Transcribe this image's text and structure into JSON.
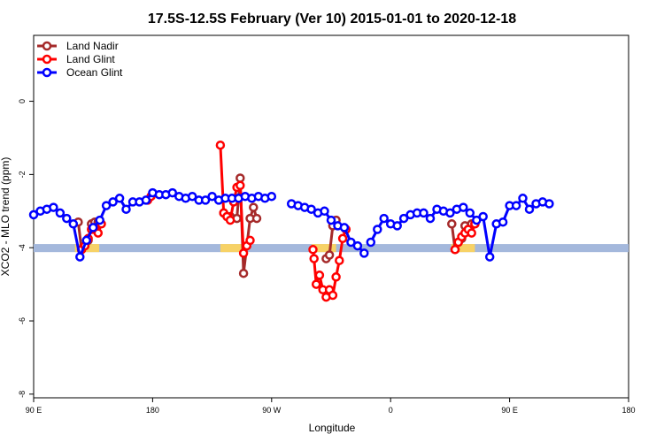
{
  "chart_data": {
    "type": "line",
    "title": "17.5S-12.5S February (Ver 10)   2015-01-01 to 2020-12-18",
    "xlabel": "Longitude",
    "ylabel": "XCO2 - MLO trend (ppm)",
    "xlim": [
      -90,
      180
    ],
    "ylim": [
      -8.1,
      1.8
    ],
    "x_ticks": [
      -90,
      -36,
      18,
      72,
      126,
      180
    ],
    "x_tick_labels": [
      "90 E",
      "180",
      "90 W",
      "0",
      "90 E",
      "180"
    ],
    "y_ticks": [
      0,
      -2,
      -4,
      -6,
      -8
    ],
    "y_tick_labels": [
      "0",
      "-2",
      "-4",
      "-6",
      "-8"
    ],
    "grid": false,
    "legend_position": "top-left",
    "series": [
      {
        "name": "Land Nadir",
        "color": "#a52a2a",
        "segments": [
          [
            [
              -69.75,
              -3.3
            ],
            [
              -68.25,
              -4.05
            ],
            [
              -66.75,
              -3.95
            ],
            [
              -65.25,
              -3.8
            ],
            [
              -63.75,
              -3.35
            ],
            [
              -62.25,
              -3.3
            ],
            [
              -60.75,
              -3.3
            ]
          ],
          [
            [
              -3.75,
              -3.05
            ],
            [
              -0.75,
              -3.15
            ],
            [
              2.25,
              -3.2
            ],
            [
              3.75,
              -2.1
            ],
            [
              5.25,
              -4.7
            ],
            [
              8.25,
              -3.2
            ],
            [
              9.75,
              -2.9
            ],
            [
              11.25,
              -3.2
            ]
          ],
          [
            [
              42.75,
              -4.3
            ],
            [
              44.25,
              -4.2
            ],
            [
              45.75,
              -3.4
            ],
            [
              47.25,
              -3.25
            ]
          ],
          [
            [
              99.75,
              -3.35
            ],
            [
              101.25,
              -4.05
            ],
            [
              102.75,
              -3.85
            ],
            [
              104.25,
              -3.75
            ],
            [
              105.75,
              -3.4
            ],
            [
              107.25,
              -3.5
            ],
            [
              108.75,
              -3.35
            ],
            [
              110.25,
              -3.35
            ]
          ]
        ]
      },
      {
        "name": "Land Glint",
        "color": "#ff0000",
        "segments": [
          [
            [
              -68.25,
              -4.05
            ],
            [
              -66.75,
              -3.95
            ],
            [
              -65.25,
              -3.75
            ],
            [
              -63.75,
              -3.5
            ],
            [
              -62.25,
              -3.5
            ],
            [
              -60.75,
              -3.6
            ],
            [
              -59.25,
              -3.35
            ]
          ],
          [
            [
              -38.25,
              -2.7
            ],
            [
              -36.75,
              -2.6
            ]
          ],
          [
            [
              -5.25,
              -1.2
            ],
            [
              -3.75,
              -3.05
            ],
            [
              -2.25,
              -3.15
            ],
            [
              -0.75,
              -3.25
            ],
            [
              0.75,
              -2.75
            ],
            [
              2.25,
              -2.35
            ],
            [
              3.75,
              -2.3
            ],
            [
              5.25,
              -4.15
            ],
            [
              6.75,
              -3.95
            ],
            [
              8.25,
              -3.8
            ]
          ],
          [
            [
              36.75,
              -4.05
            ],
            [
              37.25,
              -4.3
            ],
            [
              38.25,
              -5.0
            ],
            [
              39.75,
              -4.75
            ],
            [
              41.25,
              -5.15
            ],
            [
              42.75,
              -5.35
            ],
            [
              44.25,
              -5.15
            ],
            [
              45.75,
              -5.3
            ],
            [
              47.25,
              -4.8
            ],
            [
              48.75,
              -4.35
            ],
            [
              50.25,
              -3.75
            ],
            [
              51.75,
              -3.5
            ]
          ],
          [
            [
              101.25,
              -4.05
            ],
            [
              102.75,
              -3.85
            ],
            [
              104.25,
              -3.7
            ],
            [
              105.75,
              -3.6
            ],
            [
              107.25,
              -3.5
            ],
            [
              108.75,
              -3.6
            ],
            [
              110.25,
              -3.35
            ]
          ]
        ]
      },
      {
        "name": "Ocean Glint",
        "color": "#0000ff",
        "segments": [
          [
            [
              -90,
              -3.1
            ],
            [
              -87,
              -3.0
            ],
            [
              -84,
              -2.95
            ],
            [
              -81,
              -2.9
            ],
            [
              -78,
              -3.05
            ],
            [
              -75,
              -3.2
            ],
            [
              -72,
              -3.35
            ],
            [
              -69,
              -4.25
            ],
            [
              -66,
              -3.8
            ],
            [
              -63,
              -3.45
            ],
            [
              -60,
              -3.25
            ],
            [
              -57,
              -2.85
            ],
            [
              -54,
              -2.75
            ],
            [
              -51,
              -2.65
            ],
            [
              -48,
              -2.95
            ],
            [
              -45,
              -2.75
            ],
            [
              -42,
              -2.75
            ],
            [
              -39,
              -2.7
            ],
            [
              -36,
              -2.5
            ],
            [
              -33,
              -2.55
            ],
            [
              -30,
              -2.55
            ],
            [
              -27,
              -2.5
            ],
            [
              -24,
              -2.6
            ],
            [
              -21,
              -2.65
            ],
            [
              -18,
              -2.6
            ],
            [
              -15,
              -2.7
            ],
            [
              -12,
              -2.7
            ],
            [
              -9,
              -2.6
            ],
            [
              -6,
              -2.7
            ],
            [
              -3,
              -2.65
            ],
            [
              0,
              -2.65
            ],
            [
              3,
              -2.65
            ],
            [
              6,
              -2.6
            ],
            [
              9,
              -2.65
            ],
            [
              12,
              -2.6
            ],
            [
              15,
              -2.65
            ],
            [
              18,
              -2.6
            ]
          ],
          [
            [
              27,
              -2.8
            ],
            [
              30,
              -2.85
            ],
            [
              33,
              -2.9
            ],
            [
              36,
              -2.95
            ],
            [
              39,
              -3.05
            ],
            [
              42,
              -3.0
            ],
            [
              45,
              -3.25
            ],
            [
              48,
              -3.4
            ],
            [
              51,
              -3.45
            ],
            [
              54,
              -3.85
            ],
            [
              57,
              -3.95
            ],
            [
              60,
              -4.15
            ]
          ],
          [
            [
              63,
              -3.85
            ],
            [
              66,
              -3.5
            ],
            [
              69,
              -3.2
            ],
            [
              72,
              -3.35
            ],
            [
              75,
              -3.4
            ],
            [
              78,
              -3.2
            ],
            [
              81,
              -3.1
            ],
            [
              84,
              -3.05
            ],
            [
              87,
              -3.05
            ],
            [
              90,
              -3.2
            ],
            [
              93,
              -2.95
            ],
            [
              96,
              -3.0
            ],
            [
              99,
              -3.05
            ],
            [
              102,
              -2.95
            ],
            [
              105,
              -2.9
            ],
            [
              108,
              -3.05
            ],
            [
              111,
              -3.25
            ],
            [
              114,
              -3.15
            ],
            [
              117,
              -4.25
            ],
            [
              120,
              -3.35
            ],
            [
              123,
              -3.3
            ],
            [
              126,
              -2.85
            ],
            [
              129,
              -2.85
            ],
            [
              132,
              -2.65
            ],
            [
              135,
              -2.95
            ],
            [
              138,
              -2.8
            ],
            [
              141,
              -2.75
            ],
            [
              144,
              -2.8
            ]
          ]
        ]
      }
    ],
    "land_mask_band": {
      "y_range": [
        -3.9,
        -4.12
      ],
      "ocean_color": "#a4b8dc",
      "land_color": "#f7d266",
      "land_x_ranges": [
        [
          -71.25,
          -60.25
        ],
        [
          -5.25,
          5.25
        ],
        [
          36.25,
          47.25
        ],
        [
          99.5,
          110.25
        ]
      ]
    }
  }
}
